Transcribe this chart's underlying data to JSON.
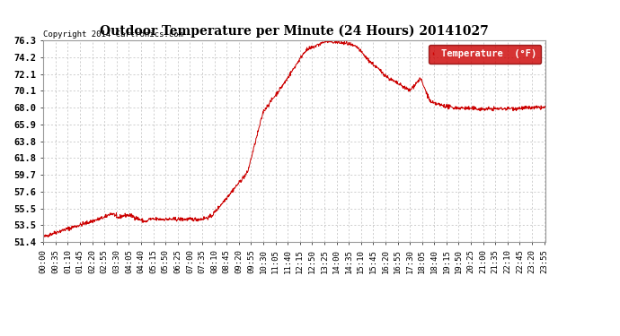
{
  "title": "Outdoor Temperature per Minute (24 Hours) 20141027",
  "copyright_text": "Copyright 2014 Cartronics.com",
  "legend_label": "Temperature  (°F)",
  "line_color": "#cc0000",
  "background_color": "#ffffff",
  "plot_bg_color": "#ffffff",
  "grid_color": "#bbbbbb",
  "yticks": [
    51.4,
    53.5,
    55.5,
    57.6,
    59.7,
    61.8,
    63.8,
    65.9,
    68.0,
    70.1,
    72.1,
    74.2,
    76.3
  ],
  "ylim": [
    51.4,
    76.3
  ],
  "xlabel_fontsize": 6.5,
  "ylabel_fontsize": 7.5,
  "title_fontsize": 10,
  "legend_bg": "#cc0000",
  "legend_text_color": "#ffffff",
  "fig_width": 6.9,
  "fig_height": 3.75,
  "dpi": 100
}
